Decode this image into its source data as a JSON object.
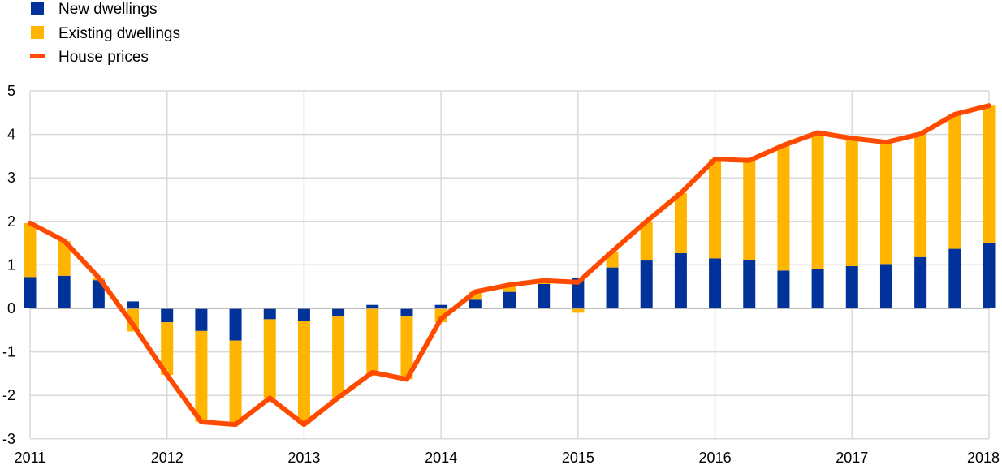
{
  "chart_data": {
    "type": "bar",
    "stacked": true,
    "title": "",
    "xlabel": "",
    "ylabel": "",
    "ylim": [
      -3,
      5
    ],
    "yticks": [
      5,
      4,
      3,
      2,
      1,
      0,
      -1,
      -2,
      -3
    ],
    "ytick_labels": [
      "5",
      "4",
      "3",
      "2",
      "1",
      "0",
      "-1",
      "-2",
      "-3"
    ],
    "xlim": [
      2011,
      2018
    ],
    "xticks": [
      2011,
      2012,
      2013,
      2014,
      2015,
      2016,
      2017,
      2018
    ],
    "xtick_labels": [
      "2011",
      "2012",
      "2013",
      "2014",
      "2015",
      "2016",
      "2017",
      "2018"
    ],
    "grid": "horizontal and vertical",
    "legend": "top-left",
    "x": [
      2011.0,
      2011.25,
      2011.5,
      2011.75,
      2012.0,
      2012.25,
      2012.5,
      2012.75,
      2013.0,
      2013.25,
      2013.5,
      2013.75,
      2014.0,
      2014.25,
      2014.5,
      2014.75,
      2015.0,
      2015.25,
      2015.5,
      2015.75,
      2016.0,
      2016.25,
      2016.5,
      2016.75,
      2017.0,
      2017.25,
      2017.5,
      2017.75,
      2018.0
    ],
    "series": [
      {
        "name": "New dwellings",
        "kind": "bar",
        "color": "#003299",
        "values": [
          0.72,
          0.75,
          0.65,
          0.16,
          -0.32,
          -0.52,
          -0.74,
          -0.25,
          -0.28,
          -0.19,
          0.08,
          -0.19,
          0.08,
          0.2,
          0.38,
          0.56,
          0.7,
          0.94,
          1.1,
          1.27,
          1.15,
          1.11,
          0.87,
          0.91,
          0.97,
          1.02,
          1.18,
          1.37,
          1.5
        ]
      },
      {
        "name": "Existing dwellings",
        "kind": "bar",
        "color": "#FFB400",
        "values": [
          1.24,
          0.8,
          0.06,
          -0.53,
          -1.21,
          -2.09,
          -1.93,
          -1.81,
          -2.39,
          -1.86,
          -1.55,
          -1.44,
          -0.32,
          0.18,
          0.16,
          0.08,
          -0.1,
          0.37,
          0.9,
          1.38,
          2.28,
          2.29,
          2.88,
          3.13,
          2.94,
          2.8,
          2.83,
          3.09,
          3.16
        ]
      },
      {
        "name": "House prices",
        "kind": "line",
        "color": "#FF4B00",
        "values": [
          1.96,
          1.55,
          0.71,
          -0.37,
          -1.53,
          -2.61,
          -2.67,
          -2.06,
          -2.67,
          -2.05,
          -1.47,
          -1.63,
          -0.24,
          0.38,
          0.54,
          0.64,
          0.6,
          1.31,
          2.0,
          2.65,
          3.43,
          3.4,
          3.75,
          4.04,
          3.91,
          3.82,
          4.01,
          4.46,
          4.66
        ]
      }
    ]
  }
}
